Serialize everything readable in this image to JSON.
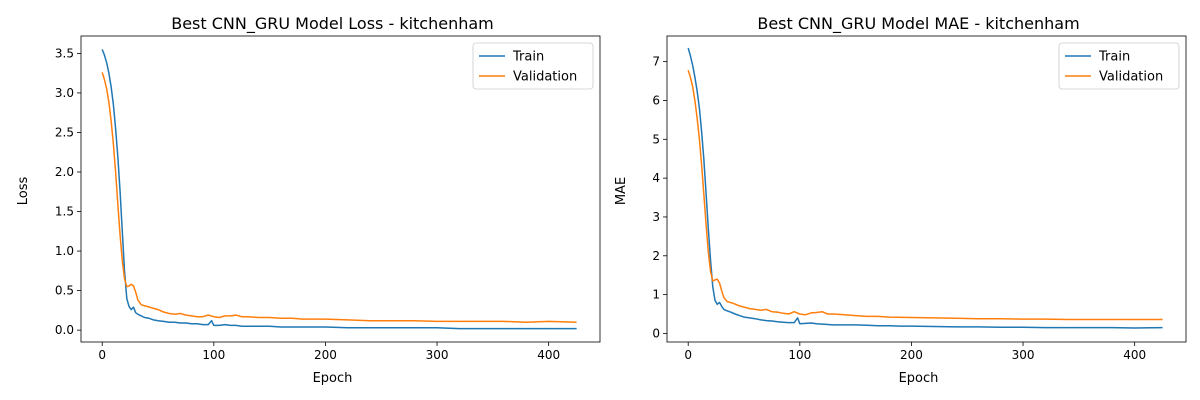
{
  "colors": {
    "train": "#1f77b4",
    "validation": "#ff7f0e",
    "axis": "#000000",
    "background": "#ffffff"
  },
  "chart_data": [
    {
      "type": "line",
      "title": "Best CNN_GRU Model Loss - kitchenham",
      "xlabel": "Epoch",
      "ylabel": "Loss",
      "xlim": [
        -19,
        446
      ],
      "ylim": [
        -0.15,
        3.72
      ],
      "xticks": [
        0,
        100,
        200,
        300,
        400
      ],
      "xtick_labels": [
        "0",
        "100",
        "200",
        "300",
        "400"
      ],
      "yticks": [
        0,
        0.5,
        1,
        1.5,
        2,
        2.5,
        3,
        3.5
      ],
      "ytick_labels": [
        "0.0",
        "0.5",
        "1.0",
        "1.5",
        "2.0",
        "2.5",
        "3.0",
        "3.5"
      ],
      "grid": false,
      "legend": "upper right",
      "series": [
        {
          "name": "Train",
          "x": [
            0,
            2,
            4,
            6,
            8,
            10,
            12,
            14,
            16,
            18,
            20,
            22,
            24,
            26,
            28,
            30,
            32,
            35,
            38,
            42,
            46,
            50,
            55,
            60,
            65,
            70,
            75,
            80,
            85,
            90,
            95,
            98,
            100,
            105,
            110,
            115,
            120,
            125,
            130,
            140,
            150,
            160,
            170,
            180,
            190,
            200,
            220,
            240,
            260,
            280,
            300,
            320,
            340,
            360,
            380,
            400,
            425
          ],
          "y": [
            3.55,
            3.48,
            3.38,
            3.25,
            3.08,
            2.85,
            2.55,
            2.2,
            1.75,
            1.25,
            0.75,
            0.4,
            0.3,
            0.26,
            0.29,
            0.22,
            0.2,
            0.18,
            0.16,
            0.15,
            0.13,
            0.12,
            0.11,
            0.1,
            0.1,
            0.09,
            0.09,
            0.08,
            0.08,
            0.07,
            0.07,
            0.12,
            0.06,
            0.06,
            0.07,
            0.06,
            0.06,
            0.05,
            0.05,
            0.05,
            0.05,
            0.04,
            0.04,
            0.04,
            0.04,
            0.04,
            0.03,
            0.03,
            0.03,
            0.03,
            0.03,
            0.02,
            0.02,
            0.02,
            0.02,
            0.02,
            0.02
          ]
        },
        {
          "name": "Validation",
          "x": [
            0,
            2,
            4,
            6,
            8,
            10,
            12,
            14,
            16,
            18,
            20,
            22,
            24,
            26,
            28,
            30,
            32,
            35,
            40,
            45,
            50,
            55,
            60,
            65,
            70,
            75,
            80,
            85,
            90,
            95,
            100,
            105,
            110,
            115,
            120,
            125,
            130,
            140,
            150,
            160,
            170,
            180,
            200,
            220,
            240,
            260,
            280,
            300,
            320,
            340,
            360,
            380,
            400,
            425
          ],
          "y": [
            3.26,
            3.17,
            3.05,
            2.88,
            2.65,
            2.35,
            2.0,
            1.6,
            1.2,
            0.88,
            0.65,
            0.55,
            0.56,
            0.58,
            0.56,
            0.48,
            0.38,
            0.32,
            0.3,
            0.28,
            0.26,
            0.23,
            0.21,
            0.2,
            0.21,
            0.19,
            0.18,
            0.17,
            0.17,
            0.19,
            0.17,
            0.16,
            0.18,
            0.18,
            0.19,
            0.17,
            0.17,
            0.16,
            0.16,
            0.15,
            0.15,
            0.14,
            0.14,
            0.13,
            0.12,
            0.12,
            0.12,
            0.11,
            0.11,
            0.11,
            0.11,
            0.1,
            0.11,
            0.1
          ]
        }
      ]
    },
    {
      "type": "line",
      "title": "Best CNN_GRU Model MAE - kitchenham",
      "xlabel": "Epoch",
      "ylabel": "MAE",
      "xlim": [
        -19,
        446
      ],
      "ylim": [
        -0.22,
        7.66
      ],
      "xticks": [
        0,
        100,
        200,
        300,
        400
      ],
      "xtick_labels": [
        "0",
        "100",
        "200",
        "300",
        "400"
      ],
      "yticks": [
        0,
        1,
        2,
        3,
        4,
        5,
        6,
        7
      ],
      "ytick_labels": [
        "0",
        "1",
        "2",
        "3",
        "4",
        "5",
        "6",
        "7"
      ],
      "grid": false,
      "legend": "upper right",
      "series": [
        {
          "name": "Train",
          "x": [
            0,
            2,
            4,
            6,
            8,
            10,
            12,
            14,
            16,
            18,
            20,
            22,
            24,
            26,
            28,
            30,
            32,
            35,
            38,
            42,
            46,
            50,
            55,
            60,
            65,
            70,
            75,
            80,
            85,
            90,
            95,
            98,
            100,
            105,
            110,
            115,
            120,
            125,
            130,
            140,
            150,
            160,
            170,
            180,
            190,
            200,
            220,
            240,
            260,
            280,
            300,
            320,
            340,
            360,
            380,
            400,
            425
          ],
          "y": [
            7.35,
            7.15,
            6.9,
            6.6,
            6.25,
            5.8,
            5.2,
            4.5,
            3.6,
            2.7,
            1.9,
            1.2,
            0.85,
            0.75,
            0.8,
            0.7,
            0.62,
            0.58,
            0.55,
            0.5,
            0.46,
            0.42,
            0.4,
            0.38,
            0.35,
            0.33,
            0.32,
            0.3,
            0.29,
            0.28,
            0.28,
            0.4,
            0.25,
            0.26,
            0.27,
            0.25,
            0.24,
            0.23,
            0.22,
            0.22,
            0.22,
            0.21,
            0.2,
            0.2,
            0.19,
            0.19,
            0.18,
            0.17,
            0.17,
            0.16,
            0.16,
            0.15,
            0.15,
            0.15,
            0.15,
            0.14,
            0.15
          ]
        },
        {
          "name": "Validation",
          "x": [
            0,
            2,
            4,
            6,
            8,
            10,
            12,
            14,
            16,
            18,
            20,
            22,
            24,
            26,
            28,
            30,
            32,
            35,
            40,
            45,
            50,
            55,
            60,
            65,
            70,
            75,
            80,
            85,
            90,
            95,
            100,
            105,
            110,
            115,
            120,
            125,
            130,
            140,
            150,
            160,
            170,
            180,
            200,
            220,
            240,
            260,
            280,
            300,
            320,
            340,
            360,
            380,
            400,
            425
          ],
          "y": [
            6.78,
            6.6,
            6.35,
            6.0,
            5.55,
            5.0,
            4.35,
            3.6,
            2.8,
            2.1,
            1.6,
            1.35,
            1.38,
            1.4,
            1.3,
            1.1,
            0.92,
            0.82,
            0.78,
            0.72,
            0.68,
            0.64,
            0.62,
            0.6,
            0.62,
            0.56,
            0.55,
            0.52,
            0.5,
            0.56,
            0.5,
            0.48,
            0.53,
            0.54,
            0.56,
            0.5,
            0.5,
            0.48,
            0.46,
            0.44,
            0.44,
            0.42,
            0.41,
            0.4,
            0.39,
            0.38,
            0.38,
            0.37,
            0.37,
            0.36,
            0.36,
            0.36,
            0.36,
            0.36
          ]
        }
      ]
    }
  ]
}
